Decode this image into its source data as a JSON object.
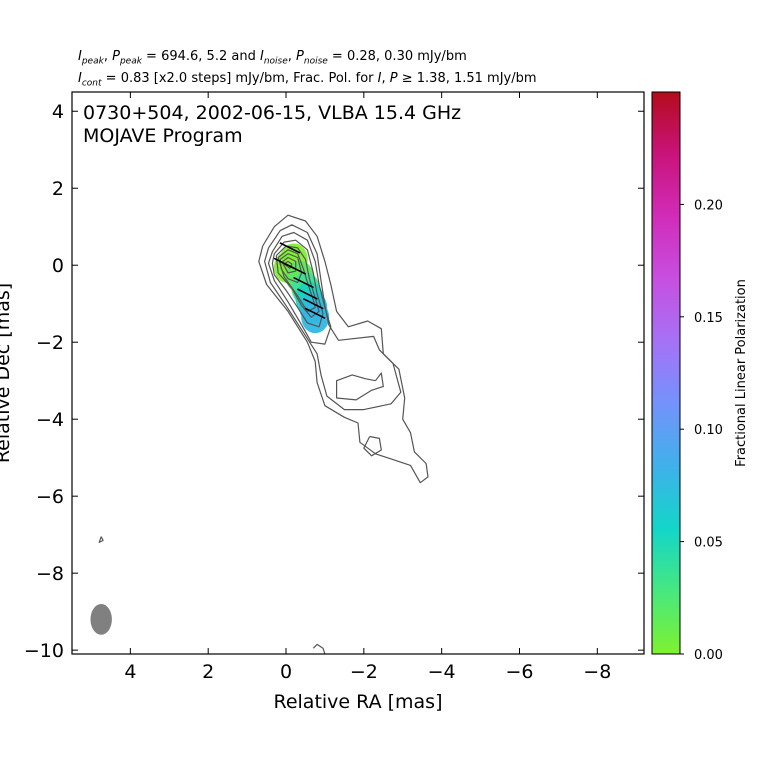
{
  "header": {
    "line1": {
      "ipeak_sym": "I",
      "ipeak_sub": "peak",
      "ppeak_sym": "P",
      "ppeak_sub": "peak",
      "peak_vals": " = 694.6, 5.2 and ",
      "inoise_sym": "I",
      "inoise_sub": "noise",
      "pnoise_sym": "P",
      "pnoise_sub": "noise",
      "noise_vals": " = 0.28, 0.30 mJy/bm"
    },
    "line2": {
      "icont_sym": "I",
      "icont_sub": "cont",
      "cont_text": " = 0.83 [x2.0 steps] mJy/bm, Frac. Pol. for ",
      "i_sym": "I",
      "p_sym": "P",
      "thresh_text": " ≥  1.38, 1.51 mJy/bm"
    }
  },
  "chart_data": {
    "type": "contour",
    "title_line1": "0730+504, 2002-06-15, VLBA 15.4 GHz",
    "title_line2": "MOJAVE Program",
    "xlabel": "Relative RA [mas]",
    "ylabel": "Relative Dec [mas]",
    "xlim": [
      5.5,
      -9.2
    ],
    "ylim": [
      -10.1,
      4.5
    ],
    "x_ticks": [
      4,
      2,
      0,
      -2,
      -4,
      -6,
      -8
    ],
    "x_tick_labels": [
      "4",
      "2",
      "0",
      "−2",
      "−4",
      "−6",
      "−8"
    ],
    "y_ticks": [
      4,
      2,
      0,
      -2,
      -4,
      -6,
      -8,
      -10
    ],
    "y_tick_labels": [
      "4",
      "2",
      "0",
      "−2",
      "−4",
      "−6",
      "−8",
      "−10"
    ],
    "contour_base_mJy": 0.83,
    "contour_step_factor": 2.0,
    "contour_color": "#555555",
    "beam": {
      "x": 4.75,
      "y": -9.2,
      "major_mas": 0.8,
      "minor_mas": 0.55,
      "color": "#808080"
    },
    "colorbar": {
      "label": "Fractional Linear Polarization",
      "min": 0.0,
      "max": 0.25,
      "ticks": [
        0.0,
        0.05,
        0.1,
        0.15,
        0.2
      ],
      "tick_labels": [
        "0.00",
        "0.05",
        "0.10",
        "0.15",
        "0.20"
      ],
      "colors": [
        "#7ef22e",
        "#48e87e",
        "#13d6c8",
        "#3fb1ea",
        "#7393fb",
        "#a572f6",
        "#c74fe1",
        "#d12cb9",
        "#c9137b",
        "#b40c1c"
      ]
    },
    "polarization_patches": [
      {
        "x": -0.05,
        "y": -0.05,
        "frac_pol": 0.0,
        "color": "#7ef22e"
      },
      {
        "x": -0.2,
        "y": 0.15,
        "frac_pol": 0.0,
        "color": "#80f030"
      },
      {
        "x": -0.35,
        "y": -0.3,
        "frac_pol": 0.02,
        "color": "#5ee65e"
      },
      {
        "x": -0.5,
        "y": -0.6,
        "frac_pol": 0.035,
        "color": "#3fdf96"
      },
      {
        "x": -0.6,
        "y": -0.85,
        "frac_pol": 0.05,
        "color": "#1cd2c0"
      },
      {
        "x": -0.7,
        "y": -1.1,
        "frac_pol": 0.07,
        "color": "#26c4d9"
      },
      {
        "x": -0.75,
        "y": -1.35,
        "frac_pol": 0.08,
        "color": "#31b8e4"
      }
    ],
    "evpa_ticks": [
      {
        "x": -0.1,
        "y": 0.45
      },
      {
        "x": 0.05,
        "y": 0.05
      },
      {
        "x": -0.25,
        "y": -0.1
      },
      {
        "x": -0.45,
        "y": -0.45
      },
      {
        "x": -0.55,
        "y": -0.75
      },
      {
        "x": -0.7,
        "y": -1.0
      },
      {
        "x": -0.75,
        "y": -1.25
      }
    ],
    "contours": [
      [
        [
          0.6,
          0.5
        ],
        [
          0.3,
          1.0
        ],
        [
          -0.05,
          1.3
        ],
        [
          -0.5,
          1.15
        ],
        [
          -0.8,
          0.75
        ],
        [
          -1.0,
          0.1
        ],
        [
          -1.15,
          -0.5
        ],
        [
          -1.3,
          -1.2
        ],
        [
          -1.6,
          -1.6
        ],
        [
          -2.1,
          -1.45
        ],
        [
          -2.45,
          -1.65
        ],
        [
          -2.5,
          -2.3
        ],
        [
          -2.9,
          -2.7
        ],
        [
          -3.05,
          -3.45
        ],
        [
          -3.0,
          -4.0
        ],
        [
          -3.2,
          -4.35
        ],
        [
          -3.3,
          -4.85
        ],
        [
          -3.6,
          -5.15
        ],
        [
          -3.65,
          -5.5
        ],
        [
          -3.45,
          -5.65
        ],
        [
          -3.2,
          -5.2
        ],
        [
          -2.75,
          -5.05
        ],
        [
          -2.3,
          -4.9
        ],
        [
          -1.9,
          -4.6
        ],
        [
          -1.85,
          -4.1
        ],
        [
          -1.5,
          -3.95
        ],
        [
          -1.0,
          -3.65
        ],
        [
          -0.8,
          -3.05
        ],
        [
          -0.75,
          -2.5
        ],
        [
          -0.55,
          -2.0
        ],
        [
          -0.05,
          -1.2
        ],
        [
          0.5,
          -0.5
        ],
        [
          0.7,
          0.1
        ],
        [
          0.6,
          0.5
        ]
      ],
      [
        [
          -2.3,
          -3.0
        ],
        [
          -2.45,
          -2.8
        ],
        [
          -2.5,
          -3.15
        ],
        [
          -2.2,
          -3.25
        ],
        [
          -1.8,
          -3.5
        ],
        [
          -1.3,
          -3.45
        ],
        [
          -1.3,
          -3.0
        ],
        [
          -1.7,
          -2.85
        ],
        [
          -2.05,
          -2.95
        ],
        [
          -2.3,
          -3.0
        ]
      ],
      [
        [
          -2.15,
          -4.45
        ],
        [
          -2.4,
          -4.5
        ],
        [
          -2.45,
          -4.8
        ],
        [
          -2.2,
          -4.95
        ],
        [
          -2.0,
          -4.75
        ],
        [
          -2.15,
          -4.45
        ]
      ],
      [
        [
          0.45,
          0.45
        ],
        [
          0.15,
          0.9
        ],
        [
          -0.15,
          1.05
        ],
        [
          -0.55,
          0.85
        ],
        [
          -0.8,
          0.3
        ],
        [
          -0.9,
          -0.4
        ],
        [
          -1.0,
          -1.05
        ],
        [
          -1.1,
          -1.55
        ],
        [
          -1.35,
          -1.95
        ],
        [
          -2.25,
          -1.85
        ],
        [
          -2.4,
          -2.2
        ],
        [
          -2.75,
          -2.55
        ],
        [
          -2.95,
          -3.3
        ],
        [
          -2.7,
          -3.6
        ],
        [
          -2.0,
          -3.75
        ],
        [
          -1.5,
          -3.75
        ],
        [
          -1.05,
          -3.4
        ],
        [
          -0.9,
          -2.85
        ],
        [
          -0.8,
          -2.3
        ],
        [
          -0.45,
          -1.75
        ],
        [
          0.0,
          -1.05
        ],
        [
          0.4,
          -0.45
        ],
        [
          0.55,
          0.1
        ],
        [
          0.45,
          0.45
        ]
      ],
      [
        [
          0.35,
          0.35
        ],
        [
          0.1,
          0.75
        ],
        [
          -0.2,
          0.85
        ],
        [
          -0.55,
          0.65
        ],
        [
          -0.75,
          0.1
        ],
        [
          -0.85,
          -0.5
        ],
        [
          -1.0,
          -1.1
        ],
        [
          -1.15,
          -1.6
        ],
        [
          -1.0,
          -2.05
        ],
        [
          -0.65,
          -2.0
        ],
        [
          -0.4,
          -1.55
        ],
        [
          -0.05,
          -0.95
        ],
        [
          0.3,
          -0.4
        ],
        [
          0.45,
          0.05
        ],
        [
          0.35,
          0.35
        ]
      ],
      [
        [
          0.3,
          0.3
        ],
        [
          0.05,
          0.6
        ],
        [
          -0.25,
          0.65
        ],
        [
          -0.55,
          0.4
        ],
        [
          -0.7,
          -0.2
        ],
        [
          -0.8,
          -0.75
        ],
        [
          -0.95,
          -1.25
        ],
        [
          -0.85,
          -1.6
        ],
        [
          -0.55,
          -1.5
        ],
        [
          -0.3,
          -1.1
        ],
        [
          0.0,
          -0.65
        ],
        [
          0.3,
          -0.25
        ],
        [
          0.35,
          0.05
        ],
        [
          0.3,
          0.3
        ]
      ],
      [
        [
          0.25,
          0.25
        ],
        [
          0.0,
          0.5
        ],
        [
          -0.3,
          0.45
        ],
        [
          -0.5,
          0.15
        ],
        [
          -0.6,
          -0.35
        ],
        [
          -0.75,
          -0.85
        ],
        [
          -0.85,
          -1.2
        ],
        [
          -0.65,
          -1.35
        ],
        [
          -0.4,
          -1.05
        ],
        [
          -0.15,
          -0.6
        ],
        [
          0.2,
          -0.2
        ],
        [
          0.25,
          0.25
        ]
      ],
      [
        [
          0.2,
          0.2
        ],
        [
          -0.05,
          0.4
        ],
        [
          -0.3,
          0.3
        ],
        [
          -0.45,
          -0.1
        ],
        [
          -0.55,
          -0.45
        ],
        [
          -0.7,
          -0.9
        ],
        [
          -0.75,
          -1.1
        ],
        [
          -0.55,
          -1.2
        ],
        [
          -0.3,
          -0.8
        ],
        [
          0.05,
          -0.3
        ],
        [
          0.2,
          0.2
        ]
      ],
      [
        [
          0.15,
          0.15
        ],
        [
          -0.05,
          0.3
        ],
        [
          -0.3,
          0.2
        ],
        [
          -0.4,
          -0.2
        ],
        [
          -0.3,
          -0.45
        ],
        [
          -0.05,
          -0.35
        ],
        [
          0.12,
          -0.1
        ],
        [
          0.15,
          0.15
        ]
      ],
      [
        [
          0.1,
          0.08
        ],
        [
          -0.05,
          0.2
        ],
        [
          -0.25,
          0.1
        ],
        [
          -0.25,
          -0.15
        ],
        [
          -0.05,
          -0.2
        ],
        [
          0.1,
          0.08
        ]
      ],
      [
        [
          0.05,
          0.03
        ],
        [
          -0.05,
          0.1
        ],
        [
          -0.15,
          0.03
        ],
        [
          -0.1,
          -0.08
        ],
        [
          0.05,
          0.03
        ]
      ],
      [
        [
          4.75,
          -7.05
        ],
        [
          4.7,
          -7.15
        ],
        [
          4.8,
          -7.2
        ],
        [
          4.75,
          -7.05
        ]
      ],
      [
        [
          -0.7,
          -9.95
        ],
        [
          -0.8,
          -9.85
        ],
        [
          -0.95,
          -9.95
        ],
        [
          -1.0,
          -10.1
        ]
      ]
    ]
  }
}
